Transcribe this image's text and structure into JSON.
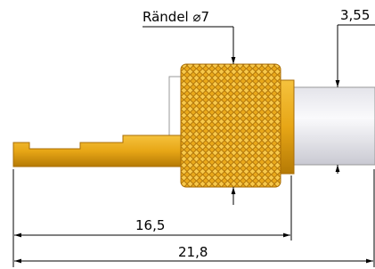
{
  "labels": {
    "knurl": "Rändel ⌀7",
    "diameter": "3,55",
    "length_inner": "16,5",
    "length_total": "21,8"
  }
}
